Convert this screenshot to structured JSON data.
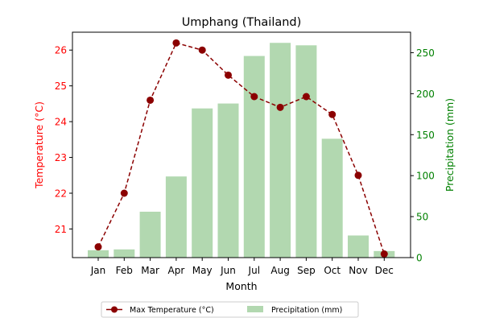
{
  "chart_data": {
    "type": "bar+line",
    "title": "Umphang (Thailand)",
    "xlabel": "Month",
    "categories": [
      "Jan",
      "Feb",
      "Mar",
      "Apr",
      "May",
      "Jun",
      "Jul",
      "Aug",
      "Sep",
      "Oct",
      "Nov",
      "Dec"
    ],
    "left_axis": {
      "label": "Temperature (°C)",
      "color": "#ff0000",
      "ylim": [
        20.2,
        26.5
      ],
      "ticks": [
        21,
        22,
        23,
        24,
        25,
        26
      ]
    },
    "right_axis": {
      "label": "Precipitation (mm)",
      "color": "#008000",
      "ylim": [
        0,
        275
      ],
      "ticks": [
        0,
        50,
        100,
        150,
        200,
        250
      ]
    },
    "series": [
      {
        "name": "Max Temperature (°C)",
        "type": "line",
        "axis": "left",
        "color": "#8b0000",
        "style": "dashed",
        "marker": "circle",
        "values": [
          20.5,
          22.0,
          24.6,
          26.2,
          26.0,
          25.3,
          24.7,
          24.4,
          24.7,
          24.2,
          22.5,
          20.3
        ]
      },
      {
        "name": "Precipitation (mm)",
        "type": "bar",
        "axis": "right",
        "color": "#b2d8b0",
        "values": [
          9,
          10,
          56,
          99,
          182,
          188,
          246,
          262,
          259,
          145,
          27,
          8
        ]
      }
    ],
    "legend": {
      "position": "bottom-center",
      "columns": 2
    },
    "grid": false
  }
}
